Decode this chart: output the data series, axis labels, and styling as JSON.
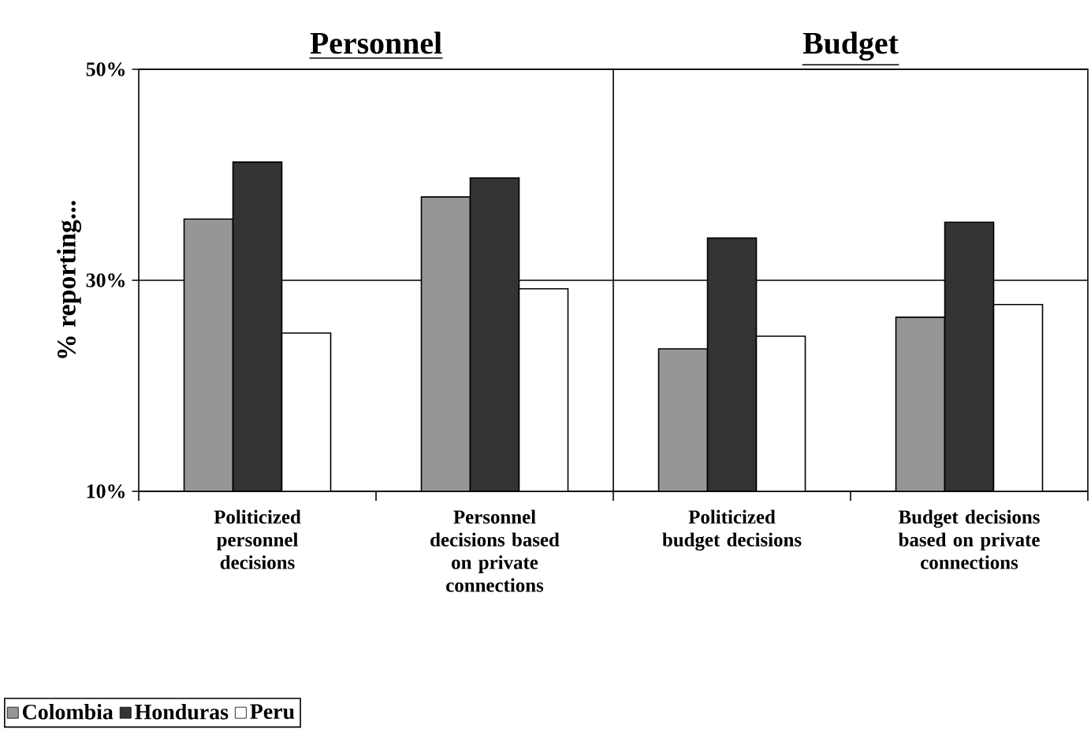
{
  "chart_data": {
    "type": "bar",
    "categories": [
      "Politicized personnel decisions",
      "Personnel decisions based on private connections",
      "Politicized budget decisions",
      "Budget decisions based on private connections"
    ],
    "series": [
      {
        "name": "Colombia",
        "color": "#969696",
        "values": [
          35.8,
          37.9,
          23.5,
          26.5
        ]
      },
      {
        "name": "Honduras",
        "color": "#333333",
        "values": [
          41.2,
          39.7,
          34.0,
          35.5
        ]
      },
      {
        "name": "Peru",
        "color": "#ffffff",
        "values": [
          25.0,
          29.2,
          24.7,
          27.7
        ]
      }
    ],
    "ylabel": "% reporting...",
    "ylim": [
      10,
      50
    ],
    "yticks": [
      {
        "value": 10,
        "label": "10%"
      },
      {
        "value": 30,
        "label": "30%"
      },
      {
        "value": 50,
        "label": "50%"
      }
    ],
    "annotations": [
      "Personnel",
      "Budget"
    ],
    "grid": "y",
    "legend": "bottom left"
  }
}
